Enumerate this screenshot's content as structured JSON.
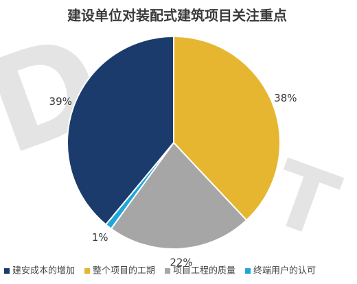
{
  "chart_data": {
    "type": "pie",
    "title": "建设单位对装配式建筑项目关注重点",
    "watermark": [
      "D",
      "T",
      "T"
    ],
    "categories": [
      "建安成本的增加",
      "整个项目的工期",
      "项目工程的质量",
      "终端用户的认可"
    ],
    "values": [
      39,
      38,
      22,
      1
    ],
    "value_labels": [
      "39%",
      "38%",
      "22%",
      "1%"
    ],
    "colors": [
      "#1b3b6c",
      "#e6b631",
      "#a6a6a6",
      "#1ea6dc"
    ],
    "legend": "bottom"
  }
}
